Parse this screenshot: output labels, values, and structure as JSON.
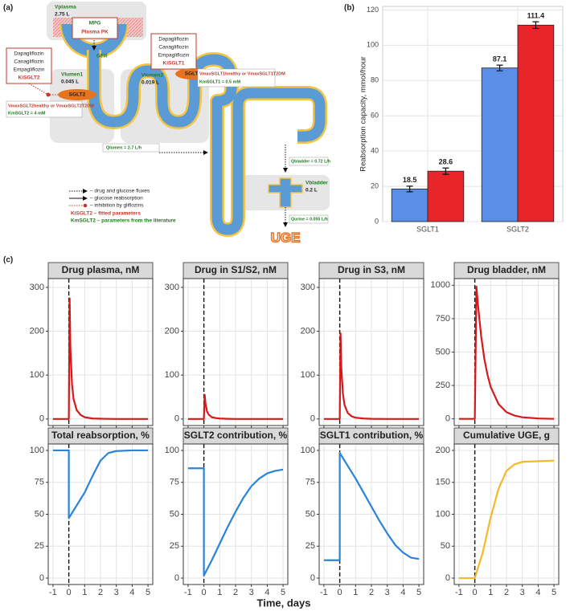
{
  "panel_labels": [
    "(a)",
    "(b)",
    "(c)"
  ],
  "diagram": {
    "plasma_volume": "Vplasma",
    "plasma_volume_value": "2.75 L",
    "mpg": "MPG",
    "plasma_pk": "Plasma PK",
    "gfr": "GFR",
    "left_box": [
      "Dapagliflozin",
      "Canagliflozin",
      "Empagliflozin",
      "KiSGLT2"
    ],
    "right_box": [
      "Dapagliflozin",
      "Canagliflozin",
      "Empagliflozin",
      "KiSGLT1"
    ],
    "lumen1": "Vlumen1",
    "lumen1_value": "0.045 L",
    "lumen2": "Vlumen2",
    "lumen2_value": "0.019 L",
    "sglt2": "SGLT2",
    "sglt1": "SGLT1",
    "sglt2_vmax": "VmaxSGLT2healthy or VmaxSGLT2T2DM",
    "sglt2_km": "KmSGLT2 = 4 mM",
    "sglt1_vmax": "VmaxSGLT1healthy or VmaxSGLT1T2DM",
    "sglt1_km": "KmSGLT1 = 0.5 mM",
    "q_lumen": "Qlumen = 2.7 L/h",
    "q_bladder": "Qbladder = 0.72 L/h",
    "bladder_volume": "Vbladder",
    "bladder_volume_value": "0.2 L",
    "q_urine": "Qurine = 0.055 L/h",
    "uge": "UGE",
    "legend": [
      "– drug and glucose fluxes",
      "– glucose reabsorption",
      "– inhibition by gliflozins",
      "KiSGLT2 – fitted parameters",
      "KmSGLT2 – parameters from the literature"
    ]
  },
  "shared_xlabel": "Time, days",
  "chart_data": [
    {
      "type": "bar",
      "ylabel": "Reabsorption capacity, mmol/hour",
      "categories": [
        "SGLT1",
        "SGLT2"
      ],
      "series": [
        {
          "color": "#5b8ee6",
          "values": [
            18.5,
            87.1
          ],
          "errors": [
            1.6,
            1.6
          ]
        },
        {
          "color": "#e8262a",
          "values": [
            28.6,
            111.4
          ],
          "errors": [
            1.8,
            1.9
          ]
        }
      ],
      "ylim": [
        0,
        122
      ],
      "yticks": [
        0,
        20,
        40,
        60,
        80,
        100,
        120
      ],
      "grid": true
    },
    {
      "type": "line",
      "title": "Drug plasma, nM",
      "color": "#d7191c",
      "x": [
        -1,
        0,
        0.05,
        0.1,
        0.2,
        0.3,
        0.5,
        0.75,
        1,
        1.5,
        2,
        3,
        4,
        5
      ],
      "values": [
        0,
        0,
        275,
        160,
        80,
        45,
        20,
        9,
        4,
        1,
        0.5,
        0,
        0,
        0
      ],
      "xlim": [
        -1.3,
        5.3
      ],
      "xticks": [
        -1,
        0,
        1,
        2,
        3,
        4,
        5
      ],
      "ylim": [
        -15,
        320
      ],
      "yticks": [
        0,
        100,
        200,
        300
      ],
      "vline": 0,
      "grid": true
    },
    {
      "type": "line",
      "title": "Drug in S1/S2, nM",
      "color": "#d7191c",
      "x": [
        -1,
        0,
        0.05,
        0.1,
        0.2,
        0.3,
        0.5,
        0.75,
        1,
        1.5,
        2,
        3,
        4,
        5
      ],
      "values": [
        0,
        0,
        55,
        35,
        17,
        10,
        4,
        2,
        1,
        0.3,
        0,
        0,
        0,
        0
      ],
      "xlim": [
        -1.3,
        5.3
      ],
      "xticks": [
        -1,
        0,
        1,
        2,
        3,
        4,
        5
      ],
      "ylim": [
        -15,
        320
      ],
      "yticks": [
        0,
        100,
        200,
        300
      ],
      "vline": 0,
      "grid": true
    },
    {
      "type": "line",
      "title": "Drug in S3, nM",
      "color": "#d7191c",
      "x": [
        -1,
        0,
        0.05,
        0.1,
        0.2,
        0.3,
        0.5,
        0.75,
        1,
        1.5,
        2,
        3,
        4,
        5
      ],
      "values": [
        0,
        0,
        195,
        115,
        58,
        32,
        14,
        6,
        3,
        1,
        0.3,
        0,
        0,
        0
      ],
      "xlim": [
        -1.3,
        5.3
      ],
      "xticks": [
        -1,
        0,
        1,
        2,
        3,
        4,
        5
      ],
      "ylim": [
        -15,
        320
      ],
      "yticks": [
        0,
        100,
        200,
        300
      ],
      "vline": 0,
      "grid": true
    },
    {
      "type": "line",
      "title": "Drug bladder, nM",
      "color": "#d7191c",
      "x": [
        -1,
        0,
        0.1,
        0.2,
        0.4,
        0.6,
        0.8,
        1,
        1.5,
        2,
        2.5,
        3,
        4,
        5
      ],
      "values": [
        0,
        0,
        990,
        850,
        620,
        450,
        330,
        240,
        110,
        50,
        25,
        12,
        3,
        0
      ],
      "xlim": [
        -1.3,
        5.3
      ],
      "xticks": [
        -1,
        0,
        1,
        2,
        3,
        4,
        5
      ],
      "ylim": [
        -50,
        1050
      ],
      "yticks": [
        0,
        250,
        500,
        750,
        1000
      ],
      "vline": 0,
      "grid": true
    },
    {
      "type": "line",
      "title": "Total reabsorption, %",
      "color": "#2a84d8",
      "x": [
        -1,
        0,
        0,
        0.5,
        1,
        1.5,
        2,
        2.5,
        3,
        4,
        5
      ],
      "values": [
        100,
        100,
        47,
        57,
        67,
        80,
        92,
        98,
        99.5,
        100,
        100
      ],
      "xlim": [
        -1.3,
        5.3
      ],
      "xticks": [
        -1,
        0,
        1,
        2,
        3,
        4,
        5
      ],
      "ylim": [
        -5,
        105
      ],
      "yticks": [
        0,
        25,
        50,
        75,
        100
      ],
      "vline": 0,
      "grid": true
    },
    {
      "type": "line",
      "title": "SGLT2 contribution, %",
      "color": "#2a84d8",
      "x": [
        -1,
        0,
        0,
        0.5,
        1,
        1.5,
        2,
        2.5,
        3,
        3.5,
        4,
        4.5,
        5
      ],
      "values": [
        86,
        86,
        2,
        14,
        27,
        40,
        52,
        63,
        72,
        78,
        82,
        84,
        85
      ],
      "xlim": [
        -1.3,
        5.3
      ],
      "xticks": [
        -1,
        0,
        1,
        2,
        3,
        4,
        5
      ],
      "ylim": [
        -5,
        105
      ],
      "yticks": [
        0,
        25,
        50,
        75,
        100
      ],
      "vline": 0,
      "grid": true
    },
    {
      "type": "line",
      "title": "SGLT1 contribution, %",
      "color": "#2a84d8",
      "x": [
        -1,
        0,
        0,
        0.5,
        1,
        1.5,
        2,
        2.5,
        3,
        3.5,
        4,
        4.5,
        5
      ],
      "values": [
        14,
        14,
        98,
        88,
        78,
        67,
        56,
        45,
        35,
        26,
        20,
        16,
        15
      ],
      "xlim": [
        -1.3,
        5.3
      ],
      "xticks": [
        -1,
        0,
        1,
        2,
        3,
        4,
        5
      ],
      "ylim": [
        -5,
        105
      ],
      "yticks": [
        0,
        25,
        50,
        75,
        100
      ],
      "vline": 0,
      "grid": true
    },
    {
      "type": "line",
      "title": "Cumulative UGE, g",
      "color": "#f2b929",
      "x": [
        -1,
        0,
        0.5,
        1,
        1.5,
        2,
        2.5,
        3,
        4,
        5
      ],
      "values": [
        0,
        0,
        40,
        95,
        140,
        168,
        178,
        182,
        183,
        184
      ],
      "xlim": [
        -1.3,
        5.3
      ],
      "xticks": [
        -1,
        0,
        1,
        2,
        3,
        4,
        5
      ],
      "ylim": [
        -10,
        210
      ],
      "yticks": [
        0,
        50,
        100,
        150,
        200
      ],
      "vline": 0,
      "grid": true
    }
  ]
}
